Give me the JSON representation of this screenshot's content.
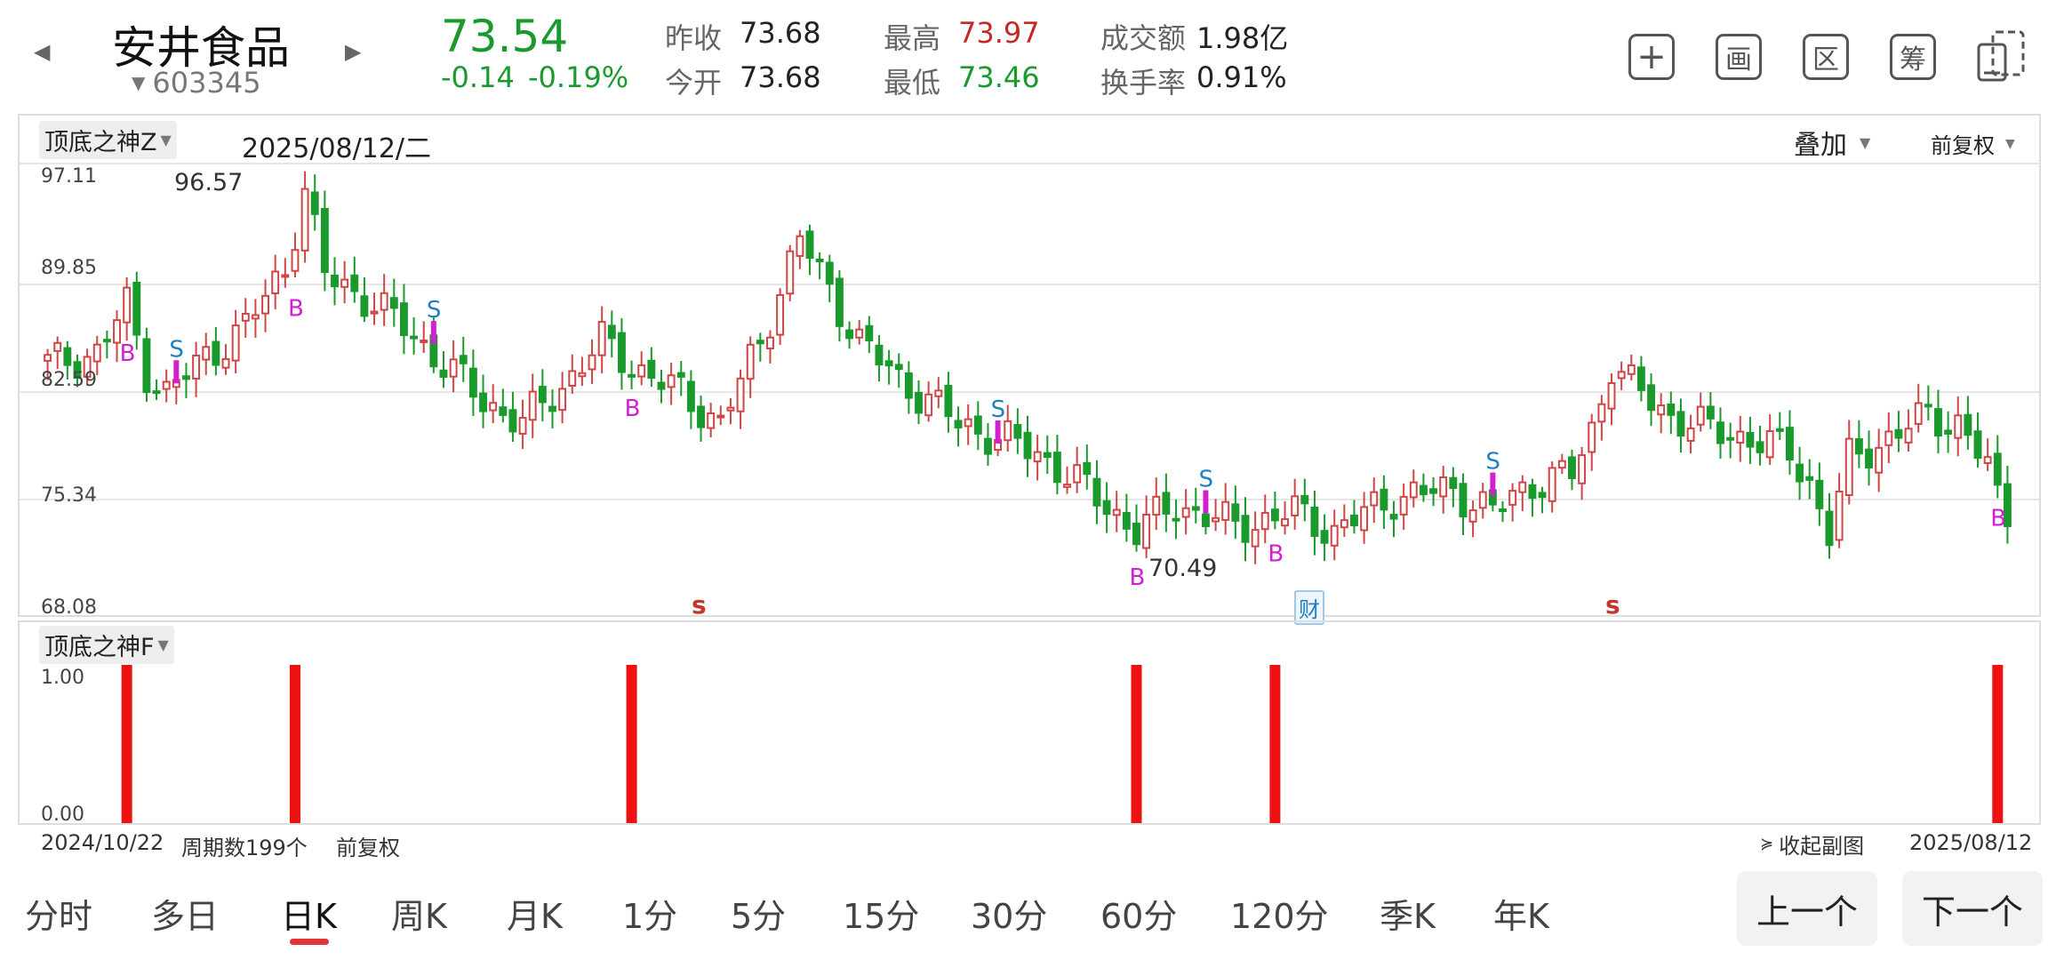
{
  "header": {
    "stock_name": "安井食品",
    "stock_code": "603345",
    "price": "73.54",
    "change": "-0.14",
    "change_pct": "-0.19%",
    "stats": [
      {
        "label": "昨收",
        "value": "73.68",
        "color": "#222222"
      },
      {
        "label": "今开",
        "value": "73.68",
        "color": "#222222"
      },
      {
        "label": "最高",
        "value": "73.97",
        "color": "#c62828"
      },
      {
        "label": "最低",
        "value": "73.46",
        "color": "#1a9a2c"
      },
      {
        "label": "成交额",
        "value": "1.98亿",
        "color": "#222222"
      },
      {
        "label": "换手率",
        "value": "0.91%",
        "color": "#222222"
      }
    ],
    "tool_icons": [
      "plus-icon",
      "drawing-icon",
      "interval-icon",
      "chips-icon",
      "rotate-screen-icon"
    ],
    "tool_glyphs": [
      "+",
      "画",
      "区",
      "筹",
      ""
    ]
  },
  "main_chart": {
    "indicator": "顶底之神Z",
    "date": "2025/08/12/二",
    "overlay_label": "叠加",
    "adjust_label": "前复权",
    "y_ticks": [
      "97.11",
      "89.85",
      "82.59",
      "75.34",
      "68.08"
    ],
    "max_label": "96.57",
    "min_label": "70.49",
    "event_marker": "财",
    "signal_s": "S",
    "signal_b": "B",
    "bottom_s": "s"
  },
  "sub_chart": {
    "indicator": "顶底之神F",
    "y_ticks": [
      "1.00",
      "0.00"
    ]
  },
  "footer": {
    "start_date": "2024/10/22",
    "period_count": "周期数199个",
    "adjust": "前复权",
    "collapse": "收起副图",
    "end_date": "2025/08/12"
  },
  "period_tabs": [
    "分时",
    "多日",
    "日K",
    "周K",
    "月K",
    "1分",
    "5分",
    "15分",
    "30分",
    "60分",
    "120分",
    "季K",
    "年K"
  ],
  "active_tab": "日K",
  "nav": {
    "prev": "上一个",
    "next": "下一个"
  },
  "colors": {
    "up": "#d04545",
    "down": "#1a9a2c",
    "signal_s": "#1f7fc4",
    "signal_b": "#d21fd2",
    "bar": "#ee1111",
    "bottom_s": "#c0392b"
  },
  "chart_data": {
    "type": "candlestick",
    "y_range": [
      68.08,
      97.11
    ],
    "count": 199,
    "anchors": [
      [
        0,
        84.5
      ],
      [
        5,
        85.2
      ],
      [
        8,
        88.5
      ],
      [
        10,
        84.0
      ],
      [
        12,
        82.5
      ],
      [
        16,
        85.0
      ],
      [
        20,
        87.0
      ],
      [
        24,
        91.0
      ],
      [
        26,
        96.2
      ],
      [
        28,
        90.5
      ],
      [
        32,
        89.0
      ],
      [
        36,
        87.0
      ],
      [
        40,
        84.5
      ],
      [
        44,
        82.0
      ],
      [
        48,
        80.5
      ],
      [
        52,
        83.0
      ],
      [
        56,
        86.0
      ],
      [
        60,
        84.0
      ],
      [
        64,
        82.5
      ],
      [
        68,
        80.5
      ],
      [
        72,
        86.0
      ],
      [
        76,
        93.0
      ],
      [
        79,
        89.5
      ],
      [
        82,
        86.0
      ],
      [
        86,
        83.5
      ],
      [
        92,
        80.5
      ],
      [
        100,
        78.5
      ],
      [
        106,
        75.5
      ],
      [
        110,
        73.2
      ],
      [
        114,
        75.0
      ],
      [
        120,
        73.5
      ],
      [
        126,
        74.5
      ],
      [
        130,
        73.2
      ],
      [
        136,
        75.5
      ],
      [
        142,
        76.0
      ],
      [
        146,
        74.5
      ],
      [
        150,
        76.5
      ],
      [
        154,
        77.0
      ],
      [
        156,
        80.0
      ],
      [
        158,
        84.5
      ]
    ],
    "anchors2": [
      [
        158,
        84.5
      ],
      [
        160,
        83.0
      ],
      [
        164,
        81.0
      ],
      [
        168,
        80.0
      ],
      [
        172,
        79.5
      ],
      [
        176,
        78.5
      ],
      [
        178,
        76.5
      ],
      [
        180,
        73.0
      ],
      [
        182,
        78.0
      ],
      [
        186,
        79.5
      ],
      [
        190,
        81.0
      ],
      [
        193,
        80.5
      ],
      [
        196,
        77.5
      ]
    ],
    "b_signals": [
      8,
      25,
      59,
      110,
      124,
      197
    ],
    "s_signals": [
      13,
      39,
      96,
      117,
      146
    ]
  }
}
